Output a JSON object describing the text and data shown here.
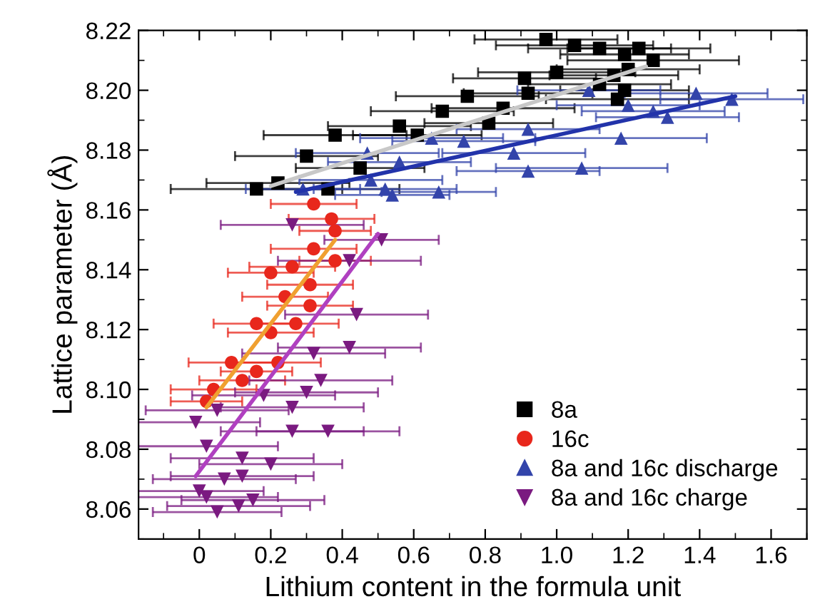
{
  "chart_data": {
    "type": "scatter",
    "xlabel": "Lithium content in the formula unit",
    "ylabel": "Lattice parameter (Å)",
    "xlim": [
      -0.17,
      1.7
    ],
    "ylim": [
      8.05,
      8.22
    ],
    "xticks": [
      0,
      0.2,
      0.4,
      0.6,
      0.8,
      {
        "value": 1,
        "label": "1.0"
      },
      1.2,
      1.4,
      1.6
    ],
    "yticks": [
      8.06,
      8.08,
      {
        "value": 8.1,
        "label": "8.10"
      },
      8.12,
      8.14,
      8.16,
      8.18,
      {
        "value": 8.2,
        "label": "8.20"
      },
      8.22
    ],
    "grid": false,
    "legend": "bottom right",
    "series": [
      {
        "name": "8a",
        "marker": "square",
        "color": "#000000",
        "x": [
          0.97,
          1.05,
          1.12,
          1.19,
          1.23,
          1.27,
          1.2,
          1.16,
          1.12,
          1.19,
          1.17,
          1.0,
          0.91,
          0.92,
          0.85,
          0.81,
          0.75,
          0.68,
          0.56,
          0.61,
          0.38,
          0.45,
          0.3,
          0.22,
          0.16,
          0.36
        ],
        "values": [
          8.217,
          8.215,
          8.214,
          8.212,
          8.214,
          8.21,
          8.207,
          8.205,
          8.202,
          8.2,
          8.197,
          8.206,
          8.204,
          8.199,
          8.194,
          8.189,
          8.198,
          8.193,
          8.188,
          8.185,
          8.185,
          8.174,
          8.178,
          8.169,
          8.167,
          8.167
        ],
        "xerrors": [
          0.2,
          0.22,
          0.2,
          0.18,
          0.2,
          0.24,
          0.2,
          0.18,
          0.2,
          0.18,
          0.2,
          0.22,
          0.2,
          0.18,
          0.2,
          0.18,
          0.2,
          0.2,
          0.2,
          0.18,
          0.2,
          0.18,
          0.2,
          0.2,
          0.24,
          0.2
        ]
      },
      {
        "name": "16c",
        "marker": "circle",
        "color": "#e8271c",
        "x": [
          0.32,
          0.37,
          0.38,
          0.32,
          0.38,
          0.2,
          0.31,
          0.24,
          0.31,
          0.16,
          0.2,
          0.22,
          0.09,
          0.16,
          0.12,
          0.04,
          0.02,
          0.27,
          0.26
        ],
        "values": [
          8.162,
          8.157,
          8.153,
          8.147,
          8.143,
          8.139,
          8.135,
          8.131,
          8.128,
          8.122,
          8.119,
          8.109,
          8.109,
          8.106,
          8.103,
          8.1,
          8.096,
          8.122,
          8.141
        ],
        "xerrors": [
          0.12,
          0.12,
          0.1,
          0.12,
          0.1,
          0.12,
          0.12,
          0.12,
          0.12,
          0.12,
          0.12,
          0.12,
          0.12,
          0.1,
          0.12,
          0.12,
          0.1,
          0.12,
          0.12
        ]
      },
      {
        "name": "8a and 16c discharge",
        "marker": "triangle",
        "color": "#3344aa",
        "x": [
          1.39,
          1.49,
          1.27,
          1.31,
          1.2,
          1.09,
          0.92,
          1.18,
          0.74,
          0.88,
          0.65,
          1.07,
          0.92,
          0.56,
          0.48,
          0.52,
          0.67,
          0.54,
          0.29,
          0.47
        ],
        "values": [
          8.199,
          8.197,
          8.193,
          8.191,
          8.195,
          8.2,
          8.187,
          8.184,
          8.183,
          8.179,
          8.184,
          8.174,
          8.173,
          8.176,
          8.17,
          8.167,
          8.166,
          8.165,
          8.167,
          8.179
        ],
        "xerrors": [
          0.2,
          0.2,
          0.2,
          0.2,
          0.2,
          0.2,
          0.2,
          0.24,
          0.2,
          0.2,
          0.2,
          0.24,
          0.2,
          0.2,
          0.2,
          0.2,
          0.16,
          0.16,
          0.16,
          0.2
        ]
      },
      {
        "name": "8a and 16c charge",
        "marker": "triangle_down",
        "color": "#7a1a80",
        "x": [
          0.51,
          0.42,
          0.26,
          0.44,
          0.42,
          0.32,
          0.34,
          0.3,
          0.18,
          0.26,
          0.36,
          0.05,
          -0.01,
          0.26,
          0.02,
          0.12,
          0.2,
          0.07,
          0.0,
          0.12,
          0.15,
          0.05,
          0.11,
          0.02
        ],
        "values": [
          8.15,
          8.143,
          8.155,
          8.125,
          8.114,
          8.112,
          8.103,
          8.099,
          8.098,
          8.094,
          8.086,
          8.093,
          8.089,
          8.086,
          8.081,
          8.077,
          8.075,
          8.07,
          8.066,
          8.071,
          8.063,
          8.059,
          8.061,
          8.064
        ],
        "xerrors": [
          0.16,
          0.2,
          0.2,
          0.2,
          0.2,
          0.2,
          0.2,
          0.2,
          0.2,
          0.2,
          0.2,
          0.2,
          0.18,
          0.2,
          0.2,
          0.2,
          0.2,
          0.2,
          0.18,
          0.2,
          0.2,
          0.18,
          0.2,
          0.2
        ]
      },
      {
        "type": "line",
        "color": "#c8c8c8",
        "x": [
          0.2,
          1.25
        ],
        "values": [
          8.168,
          8.208
        ]
      },
      {
        "type": "line",
        "color": "#f0a030",
        "x": [
          0.02,
          0.38
        ],
        "values": [
          8.094,
          8.15
        ]
      },
      {
        "type": "line",
        "color": "#2233aa",
        "x": [
          0.27,
          1.5
        ],
        "values": [
          8.166,
          8.198
        ]
      },
      {
        "type": "line",
        "color": "#b040c0",
        "x": [
          -0.01,
          0.5
        ],
        "values": [
          8.071,
          8.152
        ]
      }
    ]
  }
}
